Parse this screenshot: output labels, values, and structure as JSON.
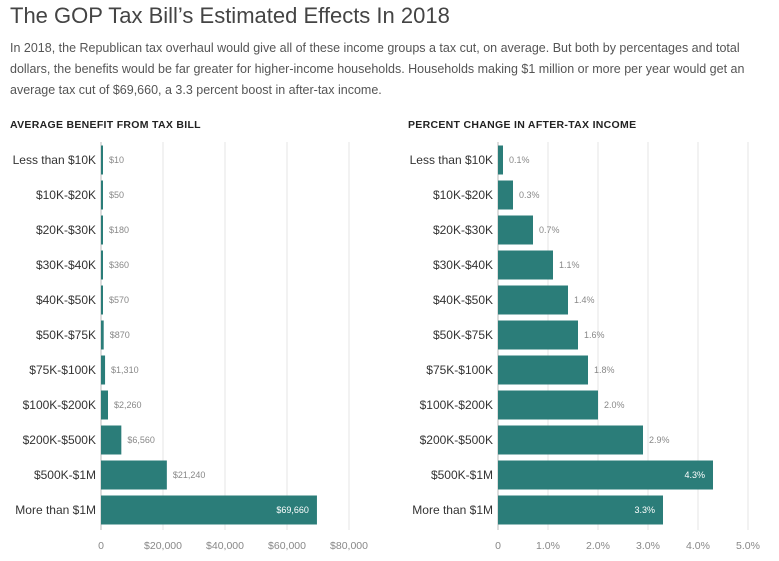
{
  "header": {
    "title": "The GOP Tax Bill’s Estimated Effects In 2018",
    "subtitle": "In 2018, the Republican tax overhaul would give all of these income groups a tax cut, on average. But both by percentages and total dollars, the benefits would be far greater for higher-income households. Households making $1 million or more per year would get an average tax cut of $69,660, a 3.3 percent boost in after-tax income."
  },
  "colors": {
    "bar": "#2b7d79",
    "grid": "#e6e6e6",
    "axis": "#bbbbbb"
  },
  "chart_data": [
    {
      "type": "bar",
      "orientation": "horizontal",
      "title": "AVERAGE BENEFIT FROM TAX BILL",
      "categories": [
        "Less than $10K",
        "$10K-$20K",
        "$20K-$30K",
        "$30K-$40K",
        "$40K-$50K",
        "$50K-$75K",
        "$75K-$100K",
        "$100K-$200K",
        "$200K-$500K",
        "$500K-$1M",
        "More than $1M"
      ],
      "values": [
        10,
        50,
        180,
        360,
        570,
        870,
        1310,
        2260,
        6560,
        21240,
        69660
      ],
      "value_labels": [
        "$10",
        "$50",
        "$180",
        "$360",
        "$570",
        "$870",
        "$1,310",
        "$2,260",
        "$6,560",
        "$21,240",
        "$69,660"
      ],
      "xlim": [
        0,
        80000
      ],
      "ticks": [
        0,
        20000,
        40000,
        60000,
        80000
      ],
      "tick_labels": [
        "0",
        "$20,000",
        "$40,000",
        "$60,000",
        "$80,000"
      ],
      "grid": true
    },
    {
      "type": "bar",
      "orientation": "horizontal",
      "title": "PERCENT CHANGE IN AFTER-TAX INCOME",
      "categories": [
        "Less than $10K",
        "$10K-$20K",
        "$20K-$30K",
        "$30K-$40K",
        "$40K-$50K",
        "$50K-$75K",
        "$75K-$100K",
        "$100K-$200K",
        "$200K-$500K",
        "$500K-$1M",
        "More than $1M"
      ],
      "values": [
        0.1,
        0.3,
        0.7,
        1.1,
        1.4,
        1.6,
        1.8,
        2.0,
        2.9,
        4.3,
        3.3
      ],
      "value_labels": [
        "0.1%",
        "0.3%",
        "0.7%",
        "1.1%",
        "1.4%",
        "1.6%",
        "1.8%",
        "2.0%",
        "2.9%",
        "4.3%",
        "3.3%"
      ],
      "xlim": [
        0,
        5
      ],
      "ticks": [
        0,
        1,
        2,
        3,
        4,
        5
      ],
      "tick_labels": [
        "0",
        "1.0%",
        "2.0%",
        "3.0%",
        "4.0%",
        "5.0%"
      ],
      "grid": true
    }
  ]
}
